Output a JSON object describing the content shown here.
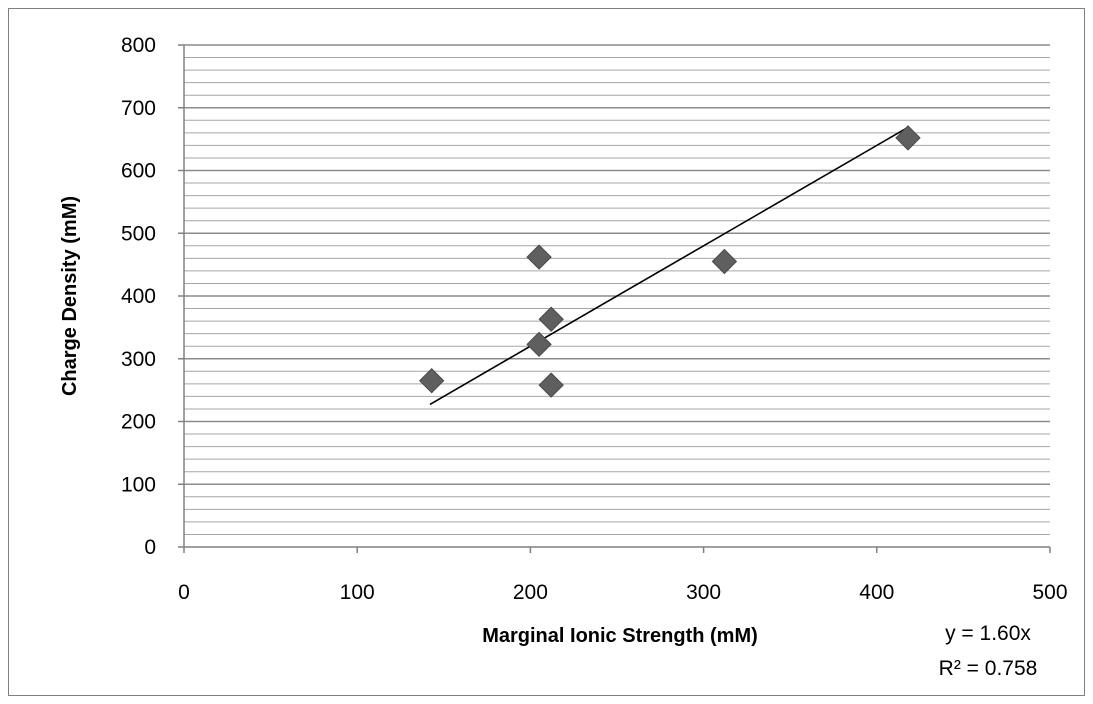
{
  "chart_data": {
    "type": "scatter",
    "title": "",
    "xlabel": "Marginal Ionic Strength (mM)",
    "ylabel": "Charge Density (mM)",
    "xlim": [
      0,
      500
    ],
    "ylim": [
      0,
      800
    ],
    "x_ticks": [
      0,
      100,
      200,
      300,
      400,
      500
    ],
    "y_ticks": [
      0,
      100,
      200,
      300,
      400,
      500,
      600,
      700,
      800
    ],
    "y_minor_step": 20,
    "grid": true,
    "legend": "none",
    "marker": "diamond",
    "marker_color": "#5f5f5f",
    "gridline_color": "#a6a6a6",
    "series": [
      {
        "points": [
          {
            "x": 143,
            "y": 265
          },
          {
            "x": 205,
            "y": 462
          },
          {
            "x": 205,
            "y": 323
          },
          {
            "x": 212,
            "y": 363
          },
          {
            "x": 212,
            "y": 258
          },
          {
            "x": 312,
            "y": 455
          },
          {
            "x": 418,
            "y": 652
          }
        ]
      }
    ],
    "trendline": {
      "slope": 1.6,
      "x_start": 142,
      "x_end": 418,
      "color": "#000000",
      "equation": "y = 1.60x",
      "r_squared": "R² = 0.758"
    }
  }
}
